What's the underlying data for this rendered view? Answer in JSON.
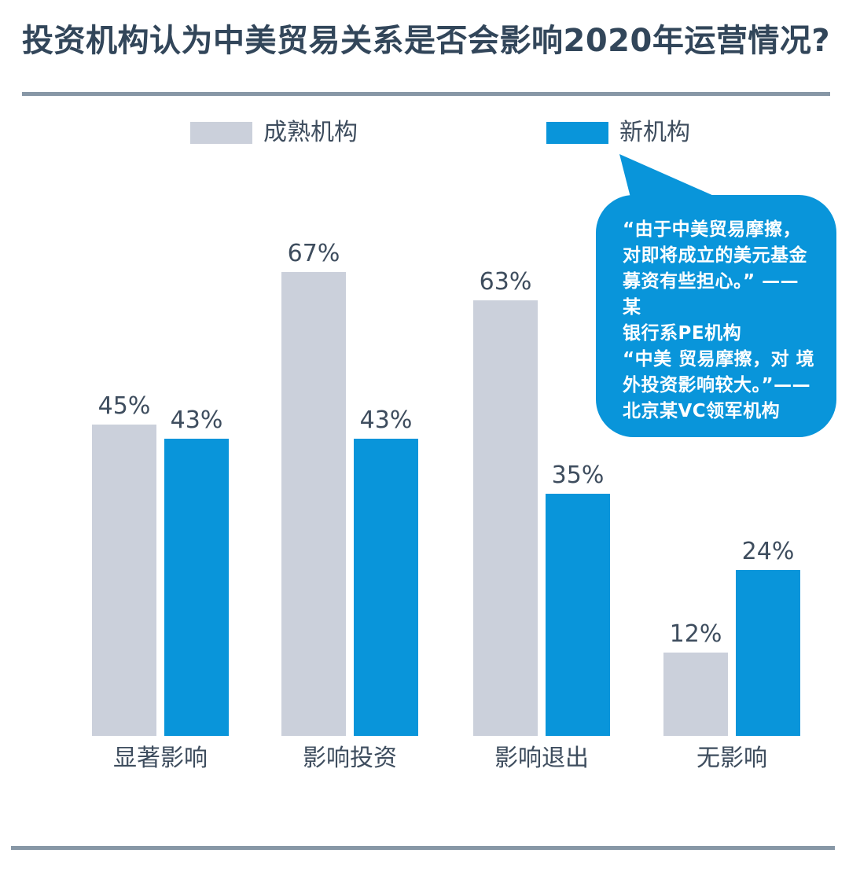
{
  "header": {
    "title": "投资机构认为中美贸易关系是否会影响2020年运营情况?"
  },
  "callout": {
    "text": "“由于中美贸易摩擦，\n对即将成立的美元基金\n募资有些担心。” —— 某\n银行系PE机构\n“中美 贸易摩擦，对 境\n外投资影响较大。”——\n北京某VC领军机构"
  },
  "colors": {
    "blue": "#0995da",
    "gray": "#cbd0db",
    "title_text": "#32465a",
    "label_text": "#3e4d5e",
    "divider": "#8797a6",
    "callout_text": "#ffffff"
  },
  "chart_data": {
    "type": "bar",
    "title": "投资机构认为中美贸易关系是否会影响2020年运营情况?",
    "categories": [
      "显著影响",
      "影响投资",
      "影响退出",
      "无影响"
    ],
    "series": [
      {
        "name": "成熟机构",
        "color": "#cbd0db",
        "values": [
          45,
          67,
          63,
          12
        ]
      },
      {
        "name": "新机构",
        "color": "#0995da",
        "values": [
          43,
          43,
          35,
          24
        ]
      }
    ],
    "unit": "%",
    "ylim": [
      0,
      70
    ],
    "grid": false,
    "value_labels": true,
    "legend_position": "top"
  }
}
